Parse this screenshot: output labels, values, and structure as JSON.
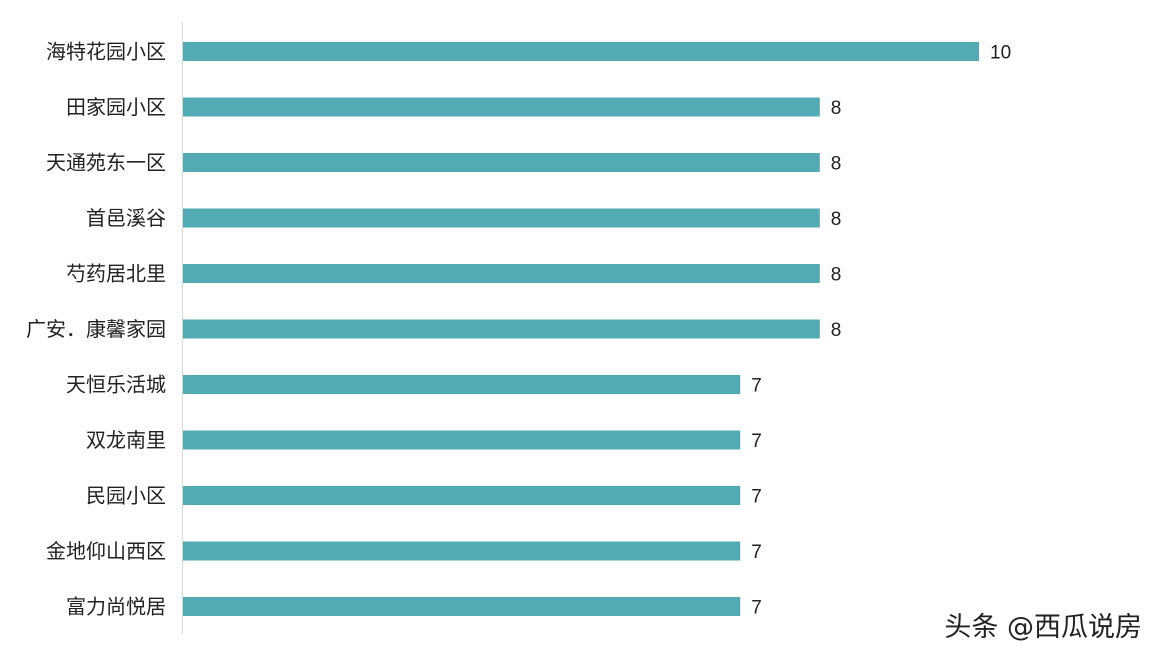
{
  "chart_data": {
    "type": "bar",
    "orientation": "horizontal",
    "categories": [
      "海特花园小区",
      "田家园小区",
      "天通苑东一区",
      "首邑溪谷",
      "芍药居北里",
      "广安．康馨家园",
      "天恒乐活城",
      "双龙南里",
      "民园小区",
      "金地仰山西区",
      "富力尚悦居"
    ],
    "values": [
      10,
      8,
      8,
      8,
      8,
      8,
      7,
      7,
      7,
      7,
      7
    ],
    "xlim": [
      0,
      10
    ],
    "bar_color": "#52abb4",
    "axis_color": "#d9d9d9",
    "grid": false,
    "legend": "none",
    "data_labels": true
  },
  "watermark": "头条 @西瓜说房"
}
